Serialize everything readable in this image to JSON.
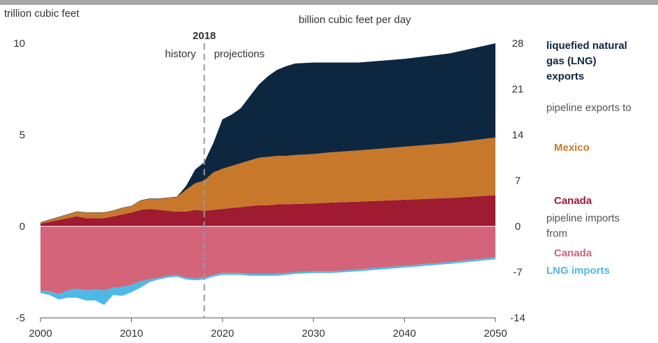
{
  "chart_data": {
    "type": "area",
    "left_axis_label": "trillion cubic feet",
    "right_axis_label": "billion cubic feet per day",
    "x_ticks": [
      2000,
      2010,
      2020,
      2030,
      2040,
      2050
    ],
    "y_ticks": [
      -5,
      0,
      5,
      10
    ],
    "y_ticks_right": [
      -14,
      -7,
      0,
      7,
      14,
      21,
      28
    ],
    "ylim": [
      -5,
      10
    ],
    "xlim": [
      2000,
      2050
    ],
    "divider_year": 2018,
    "divider_label": "2018",
    "history_label": "history",
    "projections_label": "projections",
    "x": [
      2000,
      2001,
      2002,
      2003,
      2004,
      2005,
      2006,
      2007,
      2008,
      2009,
      2010,
      2011,
      2012,
      2013,
      2014,
      2015,
      2016,
      2017,
      2018,
      2019,
      2020,
      2021,
      2022,
      2023,
      2024,
      2025,
      2026,
      2027,
      2028,
      2030,
      2032,
      2035,
      2040,
      2045,
      2050
    ],
    "series": [
      {
        "name": "Canada",
        "group": "pipeline exports to",
        "color": "#9e1b32",
        "side": "positive",
        "values": [
          0.15,
          0.25,
          0.35,
          0.45,
          0.55,
          0.45,
          0.45,
          0.45,
          0.55,
          0.65,
          0.75,
          0.9,
          0.95,
          0.9,
          0.85,
          0.8,
          0.8,
          0.9,
          0.85,
          0.9,
          0.95,
          1.0,
          1.05,
          1.1,
          1.15,
          1.15,
          1.2,
          1.2,
          1.22,
          1.25,
          1.3,
          1.35,
          1.45,
          1.55,
          1.7
        ]
      },
      {
        "name": "Mexico",
        "group": "pipeline exports to",
        "color": "#c8782a",
        "side": "positive",
        "values": [
          0.05,
          0.1,
          0.15,
          0.2,
          0.25,
          0.3,
          0.3,
          0.3,
          0.3,
          0.35,
          0.35,
          0.5,
          0.55,
          0.6,
          0.7,
          0.8,
          1.2,
          1.45,
          1.65,
          2.05,
          2.2,
          2.3,
          2.4,
          2.5,
          2.6,
          2.65,
          2.65,
          2.65,
          2.68,
          2.7,
          2.75,
          2.8,
          2.9,
          3.0,
          3.15
        ]
      },
      {
        "name": "liquefied natural gas (LNG) exports",
        "color": "#0d2740",
        "side": "positive",
        "values": [
          0.02,
          0.02,
          0.02,
          0.02,
          0.02,
          0.02,
          0.02,
          0.02,
          0.02,
          0.02,
          0.02,
          0.02,
          0.02,
          0.02,
          0.02,
          0.02,
          0.2,
          0.75,
          1.0,
          1.6,
          2.7,
          2.8,
          3.0,
          3.5,
          4.0,
          4.4,
          4.7,
          4.9,
          5.0,
          5.0,
          4.9,
          4.8,
          4.8,
          4.9,
          5.15
        ]
      },
      {
        "name": "Canada",
        "group": "pipeline imports from",
        "color": "#d4647a",
        "side": "negative",
        "values": [
          -3.5,
          -3.55,
          -3.7,
          -3.5,
          -3.4,
          -3.5,
          -3.45,
          -3.5,
          -3.35,
          -3.3,
          -3.2,
          -3.0,
          -2.9,
          -2.8,
          -2.7,
          -2.65,
          -2.8,
          -2.85,
          -2.8,
          -2.65,
          -2.55,
          -2.55,
          -2.55,
          -2.6,
          -2.6,
          -2.6,
          -2.6,
          -2.55,
          -2.5,
          -2.45,
          -2.45,
          -2.35,
          -2.15,
          -1.95,
          -1.7
        ]
      },
      {
        "name": "LNG imports",
        "color": "#4fb9e6",
        "side": "negative",
        "values": [
          -0.15,
          -0.2,
          -0.3,
          -0.4,
          -0.5,
          -0.55,
          -0.6,
          -0.8,
          -0.4,
          -0.5,
          -0.4,
          -0.35,
          -0.15,
          -0.1,
          -0.1,
          -0.1,
          -0.1,
          -0.1,
          -0.1,
          -0.1,
          -0.1,
          -0.1,
          -0.1,
          -0.1,
          -0.1,
          -0.1,
          -0.1,
          -0.1,
          -0.1,
          -0.1,
          -0.1,
          -0.1,
          -0.1,
          -0.1,
          -0.1
        ]
      }
    ],
    "legend": [
      {
        "lines": [
          "liquefied natural",
          "gas (LNG)",
          "exports"
        ],
        "color": "#0d2740",
        "bold": true
      },
      {
        "lines": [
          "pipeline exports to"
        ],
        "color": "#555555",
        "bold": false
      },
      {
        "lines": [
          "Mexico"
        ],
        "color": "#c8782a",
        "bold": true
      },
      {
        "lines": [
          "Canada"
        ],
        "color": "#9e1b32",
        "bold": true
      },
      {
        "lines": [
          "pipeline imports",
          "from"
        ],
        "color": "#555555",
        "bold": false
      },
      {
        "lines": [
          "Canada"
        ],
        "color": "#d4647a",
        "bold": true
      },
      {
        "lines": [
          "LNG imports"
        ],
        "color": "#4fb9e6",
        "bold": true
      }
    ]
  }
}
